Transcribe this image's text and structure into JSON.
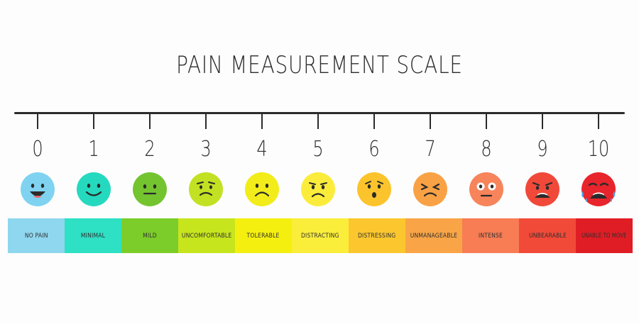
{
  "title": "PAIN MEASUREMENT SCALE",
  "scale": {
    "levels": [
      {
        "number": "0",
        "label": "NO PAIN",
        "color": "#8fd6ef",
        "face_color": "#7fd3f0",
        "face_icon": "laughing-face-icon"
      },
      {
        "number": "1",
        "label": "MINIMAL",
        "color": "#2ee0c4",
        "face_color": "#25d9bf",
        "face_icon": "smiling-face-icon"
      },
      {
        "number": "2",
        "label": "MILD",
        "color": "#7ccd2a",
        "face_color": "#74c430",
        "face_icon": "neutral-face-icon"
      },
      {
        "number": "3",
        "label": "UNCOMFORTABLE",
        "color": "#c7e51d",
        "face_color": "#c2e122",
        "face_icon": "uneasy-face-icon"
      },
      {
        "number": "4",
        "label": "TOLERABLE",
        "color": "#f5ef10",
        "face_color": "#f2ec1a",
        "face_icon": "frowning-face-icon"
      },
      {
        "number": "5",
        "label": "DISTRACTING",
        "color": "#fbee3a",
        "face_color": "#fbec3c",
        "face_icon": "sad-face-icon"
      },
      {
        "number": "6",
        "label": "DISTRESSING",
        "color": "#fcc72e",
        "face_color": "#fcc42c",
        "face_icon": "worried-face-icon"
      },
      {
        "number": "7",
        "label": "UNMANAGEABLE",
        "color": "#f9a547",
        "face_color": "#f9a245",
        "face_icon": "squinting-face-icon"
      },
      {
        "number": "8",
        "label": "INTENSE",
        "color": "#f87c54",
        "face_color": "#f7845a",
        "face_icon": "shocked-face-icon"
      },
      {
        "number": "9",
        "label": "UNBEARABLE",
        "color": "#f24a39",
        "face_color": "#f0493a",
        "face_icon": "grimacing-face-icon"
      },
      {
        "number": "10",
        "label": "UNABLE TO MOVE",
        "color": "#e01d25",
        "face_color": "#e8242c",
        "face_icon": "crying-face-icon"
      }
    ]
  },
  "colors": {
    "ink": "#2b2b2b",
    "background": "#fdfdfd"
  }
}
